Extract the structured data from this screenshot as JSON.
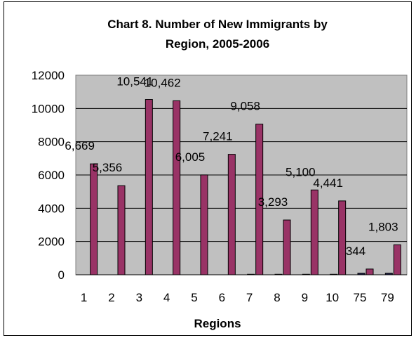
{
  "chart_data": {
    "type": "bar",
    "title_line1": "Chart 8.  Number of New Immigrants by",
    "title_line2": "Region, 2005-2006",
    "xlabel": "Regions",
    "ylabel": "",
    "ylim": [
      0,
      12000
    ],
    "yticks": [
      "0",
      "2000",
      "4000",
      "6000",
      "8000",
      "10000",
      "12000"
    ],
    "categories": [
      "1",
      "2",
      "3",
      "4",
      "5",
      "6",
      "7",
      "8",
      "9",
      "10",
      "75",
      "79"
    ],
    "series": [
      {
        "values": [
          0,
          0,
          0,
          0,
          0,
          0,
          30,
          30,
          30,
          30,
          90,
          90
        ],
        "color": "#1a1a4a"
      },
      {
        "values": [
          6669,
          5356,
          10541,
          10462,
          6005,
          7241,
          9058,
          3293,
          5100,
          4441,
          344,
          1803
        ],
        "labels": [
          "6,669",
          "5,356",
          "10,541",
          "10,462",
          "6,005",
          "7,241",
          "9,058",
          "3,293",
          "5,100",
          "4,441",
          "344",
          "1,803"
        ],
        "color": "#993366"
      }
    ],
    "plot_bg": "#c0c0c0",
    "grid": true,
    "legend": "none"
  }
}
